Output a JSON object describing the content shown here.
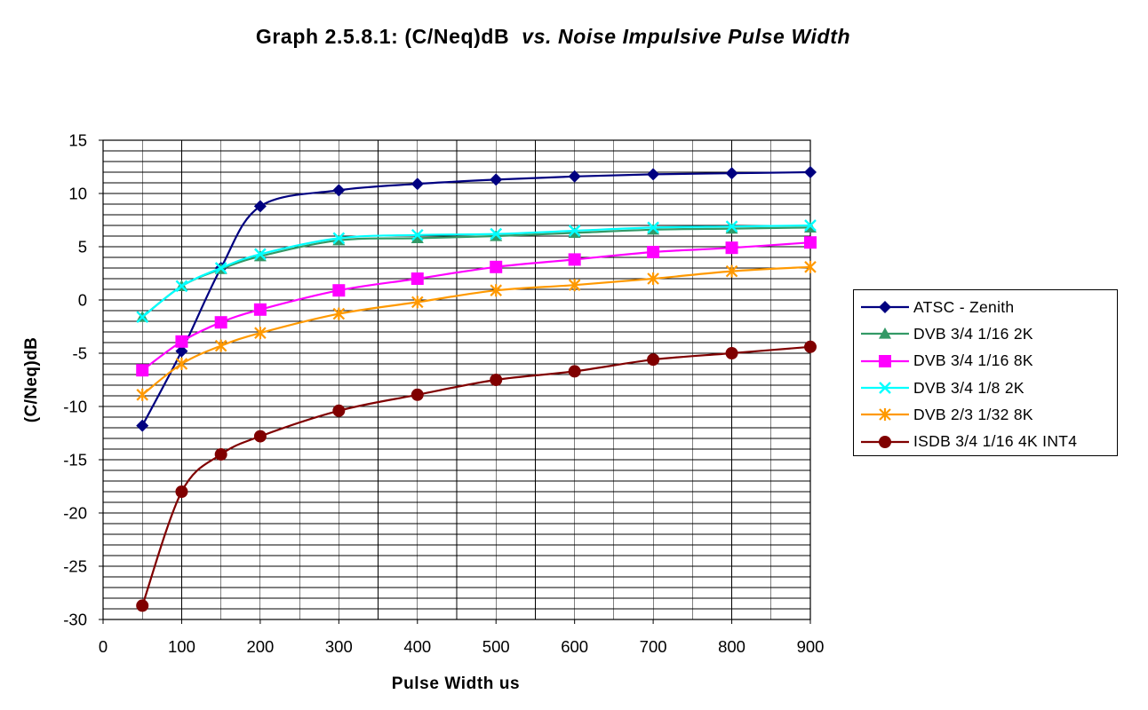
{
  "title_main": "Graph 2.5.8.1: (C/Neq)dB  ",
  "title_italic": "vs. Noise Impulsive Pulse Width",
  "chart_data": {
    "type": "line",
    "title": "Graph 2.5.8.1: (C/Neq)dB  vs. Noise Impulsive Pulse Width",
    "xlabel": "Pulse Width us",
    "ylabel": "(C/Neq)dB",
    "xlim": [
      0,
      900
    ],
    "ylim": [
      -30,
      15
    ],
    "xticks": [
      0,
      100,
      200,
      300,
      400,
      500,
      600,
      700,
      800,
      900
    ],
    "yticks": [
      15,
      10,
      5,
      0,
      -5,
      -10,
      -15,
      -20,
      -25,
      -30
    ],
    "grid": true,
    "legend_position": "right",
    "x": [
      50,
      100,
      150,
      200,
      300,
      400,
      500,
      600,
      700,
      800,
      900
    ],
    "series": [
      {
        "name": "ATSC - Zenith",
        "color": "#000080",
        "marker": "diamond",
        "values": [
          -11.8,
          -4.8,
          3.0,
          8.8,
          10.3,
          10.9,
          11.3,
          11.6,
          11.8,
          11.9,
          12.0
        ]
      },
      {
        "name": "DVB 3/4 1/16 2K",
        "color": "#339966",
        "marker": "triangle",
        "values": [
          -1.6,
          1.3,
          2.9,
          4.1,
          5.6,
          5.8,
          6.0,
          6.3,
          6.6,
          6.7,
          6.8
        ]
      },
      {
        "name": "DVB 3/4 1/16 8K",
        "color": "#ff00ff",
        "marker": "square",
        "values": [
          -6.6,
          -3.9,
          -2.1,
          -0.9,
          0.9,
          2.0,
          3.1,
          3.8,
          4.5,
          4.9,
          5.4
        ]
      },
      {
        "name": "DVB 3/4 1/8 2K",
        "color": "#00ffff",
        "marker": "x",
        "values": [
          -1.6,
          1.3,
          3.0,
          4.3,
          5.8,
          6.1,
          6.2,
          6.5,
          6.8,
          6.9,
          7.0
        ]
      },
      {
        "name": "DVB 2/3 1/32 8K",
        "color": "#ff9900",
        "marker": "asterisk",
        "values": [
          -8.9,
          -6.0,
          -4.3,
          -3.1,
          -1.3,
          -0.2,
          0.9,
          1.4,
          2.0,
          2.7,
          3.1
        ]
      },
      {
        "name": "ISDB 3/4 1/16 4K INT4",
        "color": "#800000",
        "marker": "circle",
        "values": [
          -28.7,
          -18.0,
          -14.5,
          -12.8,
          -10.4,
          -8.9,
          -7.5,
          -6.7,
          -5.6,
          -5.0,
          -4.4
        ]
      }
    ]
  }
}
